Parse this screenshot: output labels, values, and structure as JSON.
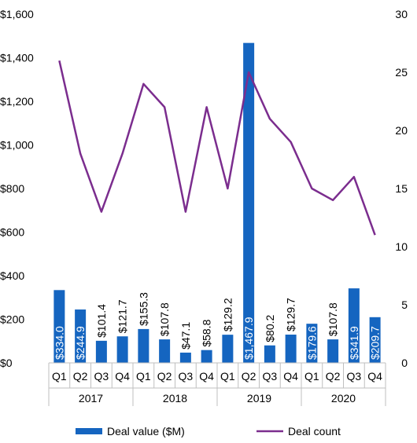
{
  "chart_data": {
    "type": "bar",
    "categories": [
      "Q1",
      "Q2",
      "Q3",
      "Q4",
      "Q1",
      "Q2",
      "Q3",
      "Q4",
      "Q1",
      "Q2",
      "Q3",
      "Q4",
      "Q1",
      "Q2",
      "Q3",
      "Q4"
    ],
    "groups": [
      {
        "label": "2017",
        "span": 4
      },
      {
        "label": "2018",
        "span": 4
      },
      {
        "label": "2019",
        "span": 4
      },
      {
        "label": "2020",
        "span": 4
      }
    ],
    "series": [
      {
        "name": "Deal value ($M)",
        "type": "bar",
        "axis": "left",
        "color": "#1565C0",
        "values": [
          334.0,
          244.9,
          101.4,
          121.7,
          155.3,
          107.8,
          47.1,
          58.8,
          129.2,
          1467.9,
          80.2,
          129.7,
          179.6,
          107.8,
          341.9,
          209.7
        ],
        "labels": [
          "$334.0",
          "$244.9",
          "$101.4",
          "$121.7",
          "$155.3",
          "$107.8",
          "$47.1",
          "$58.8",
          "$129.2",
          "$1,467.9",
          "$80.2",
          "$129.7",
          "$179.6",
          "$107.8",
          "$341.9",
          "$209.7"
        ],
        "label_inside": [
          true,
          true,
          false,
          false,
          false,
          false,
          false,
          false,
          false,
          true,
          false,
          false,
          true,
          false,
          true,
          true
        ]
      },
      {
        "name": "Deal count",
        "type": "line",
        "axis": "right",
        "color": "#7B2D8E",
        "values": [
          26,
          18,
          13,
          18,
          24,
          22,
          13,
          22,
          15,
          25,
          21,
          19,
          15,
          14,
          16,
          11
        ]
      }
    ],
    "y_left": {
      "ylim": [
        0,
        1600
      ],
      "ticks": [
        0,
        200,
        400,
        600,
        800,
        1000,
        1200,
        1400,
        1600
      ],
      "tick_labels": [
        "$0",
        "$200",
        "$400",
        "$600",
        "$800",
        "$1,000",
        "$1,200",
        "$1,400",
        "$1,600"
      ]
    },
    "y_right": {
      "ylim": [
        0,
        30
      ],
      "ticks": [
        0,
        5,
        10,
        15,
        20,
        25,
        30
      ],
      "tick_labels": [
        "0",
        "5",
        "10",
        "15",
        "20",
        "25",
        "30"
      ]
    },
    "grid": false,
    "legend": "bottom",
    "title": "",
    "xlabel": "",
    "ylabel": ""
  }
}
